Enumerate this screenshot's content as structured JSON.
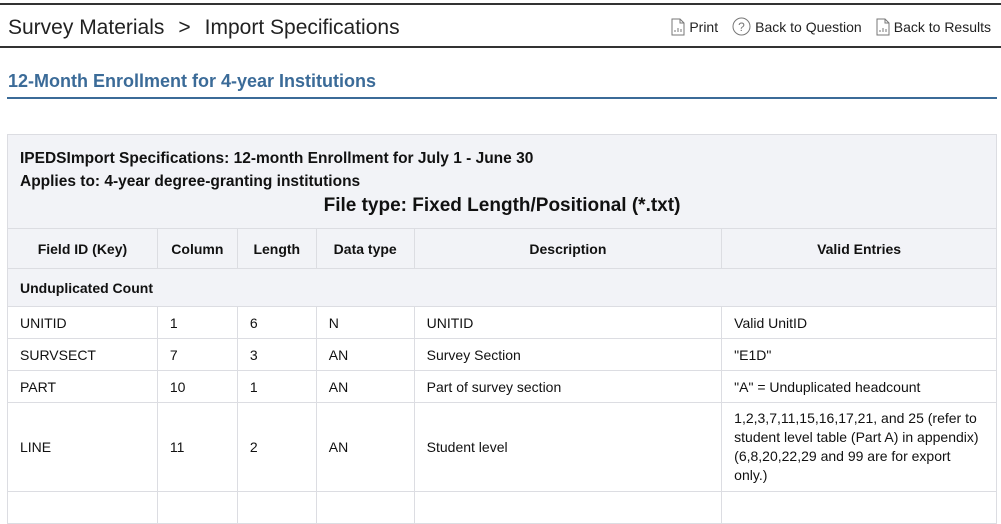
{
  "breadcrumb": {
    "items": [
      "Survey Materials",
      "Import Specifications"
    ],
    "separator": ">"
  },
  "actions": {
    "print": "Print",
    "back_question": "Back to Question",
    "back_results": "Back to Results"
  },
  "section_title": "12-Month Enrollment for 4-year Institutions",
  "spec": {
    "title_line1": "IPEDSImport Specifications: 12-month Enrollment for July 1 - June 30",
    "title_line2": "Applies to: 4-year degree-granting institutions",
    "file_type": "File type: Fixed Length/Positional (*.txt)",
    "columns": [
      "Field ID (Key)",
      "Column",
      "Length",
      "Data type",
      "Description",
      "Valid Entries"
    ],
    "group": "Unduplicated Count",
    "rows": [
      [
        "UNITID",
        "1",
        "6",
        "N",
        "UNITID",
        "Valid UnitID"
      ],
      [
        "SURVSECT",
        "7",
        "3",
        "AN",
        "Survey Section",
        "\"E1D\""
      ],
      [
        "PART",
        "10",
        "1",
        "AN",
        "Part of survey section",
        "\"A\" = Unduplicated headcount"
      ],
      [
        "LINE",
        "11",
        "2",
        "AN",
        "Student level",
        "1,2,3,7,11,15,16,17,21, and 25 (refer to student level table (Part A) in appendix) (6,8,20,22,29 and 99 are for export only.)"
      ]
    ]
  },
  "colors": {
    "accent": "#3b6b98",
    "header_bg": "#f2f3f7"
  }
}
